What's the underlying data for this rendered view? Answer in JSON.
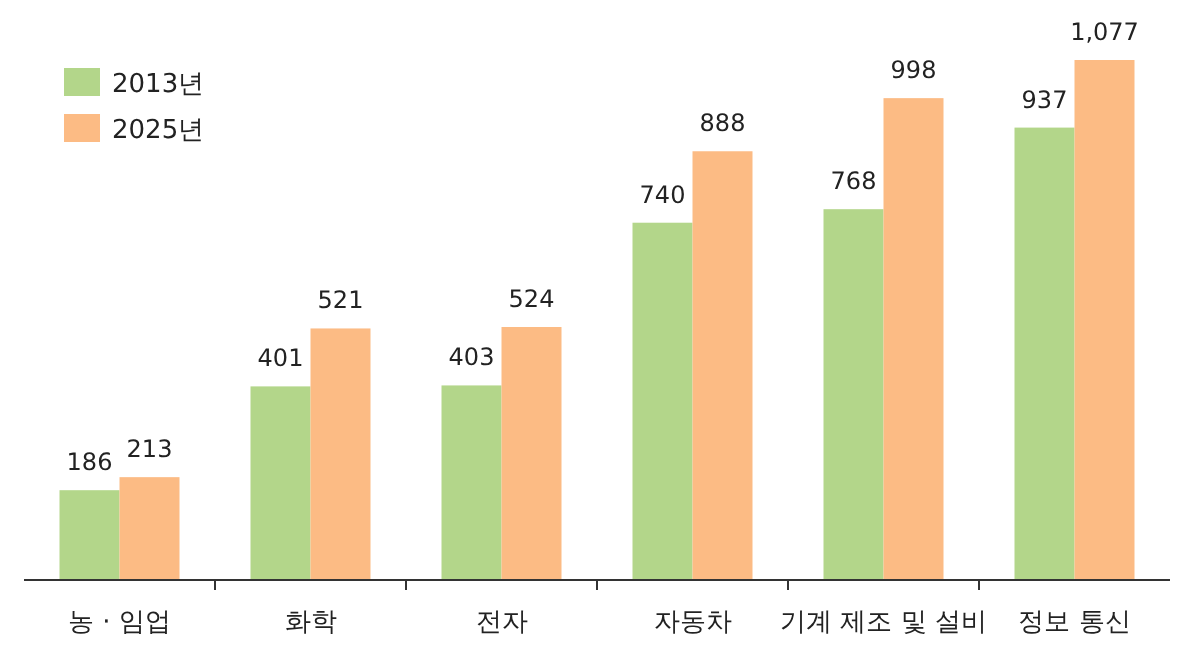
{
  "chart_data": {
    "type": "bar",
    "categories": [
      "농 · 임업",
      "화학",
      "전자",
      "자동차",
      "기계 제조 및 설비",
      "정보 통신"
    ],
    "legend": "top left",
    "series": [
      {
        "name": "2013년",
        "color": "#b3d68a",
        "values": [
          186,
          401,
          403,
          740,
          768,
          937
        ],
        "value_labels": [
          "186",
          "401",
          "403",
          "740",
          "768",
          "937"
        ]
      },
      {
        "name": "2025년",
        "color": "#fcbb84",
        "values": [
          213,
          521,
          524,
          888,
          998,
          1077
        ],
        "value_labels": [
          "213",
          "521",
          "524",
          "888",
          "998",
          "1,077"
        ]
      }
    ]
  }
}
